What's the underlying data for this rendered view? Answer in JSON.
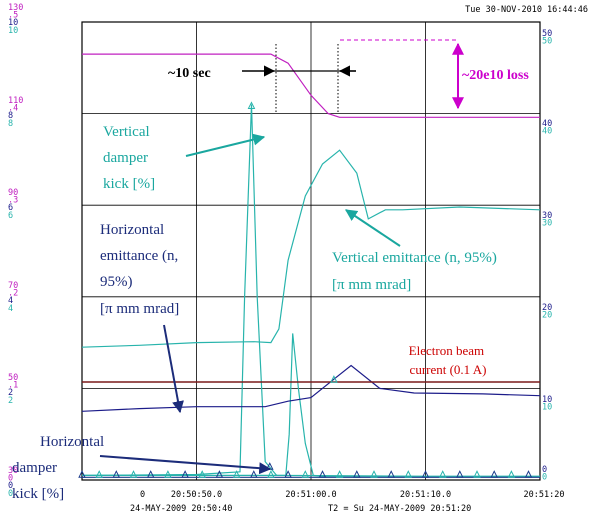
{
  "header": {
    "timestamp": "Tue 30-NOV-2010 16:44:46"
  },
  "left_scale_rows": [
    [
      "130",
      ".5",
      "10",
      "10"
    ],
    [
      "110",
      ".4",
      "8",
      "8"
    ],
    [
      "90",
      ".3",
      "6",
      "6"
    ],
    [
      "70",
      ".2",
      "4",
      "4"
    ],
    [
      "50",
      ".1",
      "2",
      "2"
    ],
    [
      "30",
      "0",
      "0",
      "0"
    ]
  ],
  "right_scale_rows": [
    [
      "50",
      "50"
    ],
    [
      "40",
      "40"
    ],
    [
      "30",
      "30"
    ],
    [
      "20",
      "20"
    ],
    [
      "10",
      "10"
    ],
    [
      "0",
      "0"
    ]
  ],
  "footer": {
    "start_time": "24-MAY-2009 20:50:40",
    "t2_label": "T2 = Su 24-MAY-2009 20:51:20"
  },
  "chart_data": {
    "type": "line",
    "x": {
      "unit": "seconds after 20:50:40",
      "range": [
        0,
        40
      ],
      "tick_labels": [
        "0",
        "20:50:50.0",
        "20:51:00.0",
        "20:51:10.0",
        "20:51:20"
      ]
    },
    "y_range_percent_of_right_scale": [
      0,
      50
    ],
    "grid": true,
    "series": [
      {
        "id": "beam_intensity",
        "color": "#c020c0",
        "x": [
          0,
          13,
          16.5,
          18,
          20,
          21.5,
          22.5,
          24,
          30,
          40
        ],
        "y": [
          46.5,
          46.5,
          46.5,
          45.5,
          42,
          40,
          39.6,
          39.6,
          39.6,
          39.6
        ]
      },
      {
        "id": "vertical_damper_kick",
        "color": "#28b4ac",
        "x": [
          0,
          10,
          13.8,
          14.2,
          14.8,
          15.3,
          16,
          17,
          30,
          40
        ],
        "y": [
          0.5,
          0.6,
          0.9,
          20,
          41,
          20,
          2,
          0.5,
          0.4,
          0.4
        ]
      },
      {
        "id": "vertical_emittance",
        "color": "#28b4ac",
        "x": [
          0,
          5,
          10,
          15,
          16.5,
          17.2,
          18,
          19.5,
          21,
          22.5,
          24,
          25,
          26.5,
          28,
          33,
          40
        ],
        "y": [
          14.5,
          14.7,
          15,
          15.1,
          15,
          16.5,
          24,
          31,
          34.5,
          36,
          33.5,
          28.5,
          29.5,
          29.5,
          29.8,
          29.5
        ]
      },
      {
        "id": "horizontal_damper_kick",
        "color": "#28b4ac",
        "x": [
          0,
          17.8,
          18.1,
          18.4,
          18.9,
          19.5,
          20.2,
          21,
          22,
          40
        ],
        "y": [
          0.5,
          0.5,
          5,
          16,
          10,
          4,
          0.5,
          0.4,
          0.4,
          0.4
        ]
      },
      {
        "id": "horizontal_emittance",
        "color": "#1c1c8a",
        "x": [
          0,
          5,
          10,
          16,
          18,
          20,
          22,
          23.5,
          26,
          29,
          35,
          40
        ],
        "y": [
          7.5,
          7.8,
          8,
          8,
          8.6,
          9,
          11,
          12.5,
          10,
          9.5,
          9.4,
          9.2
        ]
      },
      {
        "id": "electron_beam_current",
        "color": "#7a1a1a",
        "x": [
          0,
          40
        ],
        "y": [
          10.7,
          10.7
        ]
      },
      {
        "id": "baseline_markers",
        "color": "#1c3c8c",
        "x": [
          0,
          40
        ],
        "y": [
          0.3,
          0.3
        ]
      }
    ],
    "annotations": {
      "time_span": "~10 sec",
      "loss": "~20e10 loss",
      "vertical_damper": [
        "Vertical",
        "damper",
        "kick [%]"
      ],
      "vertical_emittance": [
        "Vertical emittance (n, 95%)",
        "[π mm mrad]"
      ],
      "horizontal_emittance": [
        "Horizontal",
        "emittance (n,",
        "95%)",
        "[π mm mrad]"
      ],
      "electron_current": [
        "Electron beam",
        "current (0.1 A)"
      ],
      "horizontal_damper": [
        "Horizontal",
        "damper",
        "kick [%]"
      ]
    }
  }
}
